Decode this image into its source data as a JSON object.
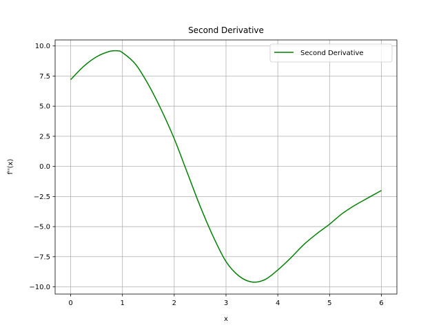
{
  "chart_data": {
    "type": "line",
    "title": "Second Derivative",
    "xlabel": "x",
    "ylabel": "f''(x)",
    "xlim": [
      -0.3,
      6.3
    ],
    "ylim": [
      -10.6,
      10.5
    ],
    "xticks": [
      0,
      1,
      2,
      3,
      4,
      5,
      6
    ],
    "xtick_labels": [
      "0",
      "1",
      "2",
      "3",
      "4",
      "5",
      "6"
    ],
    "yticks": [
      10.0,
      7.5,
      5.0,
      2.5,
      0.0,
      -2.5,
      -5.0,
      -7.5,
      -10.0
    ],
    "ytick_labels": [
      "10.0",
      "7.5",
      "5.0",
      "2.5",
      "0.0",
      "−2.5",
      "−5.0",
      "−7.5",
      "−10.0"
    ],
    "grid": true,
    "legend_position": "top-right",
    "series": [
      {
        "name": "Second Derivative",
        "color": "#008000",
        "x": [
          0,
          0.25,
          0.5,
          0.75,
          0.9,
          1.0,
          1.25,
          1.5,
          1.75,
          2.0,
          2.25,
          2.5,
          2.75,
          3.0,
          3.25,
          3.5,
          3.75,
          4.0,
          4.25,
          4.5,
          4.75,
          5.0,
          5.25,
          5.5,
          5.75,
          6.0
        ],
        "y": [
          7.2,
          8.3,
          9.1,
          9.55,
          9.6,
          9.45,
          8.5,
          6.8,
          4.7,
          2.3,
          -0.5,
          -3.3,
          -5.8,
          -7.9,
          -9.1,
          -9.6,
          -9.4,
          -8.6,
          -7.6,
          -6.5,
          -5.6,
          -4.8,
          -3.9,
          -3.2,
          -2.6,
          -2.0
        ]
      }
    ]
  }
}
